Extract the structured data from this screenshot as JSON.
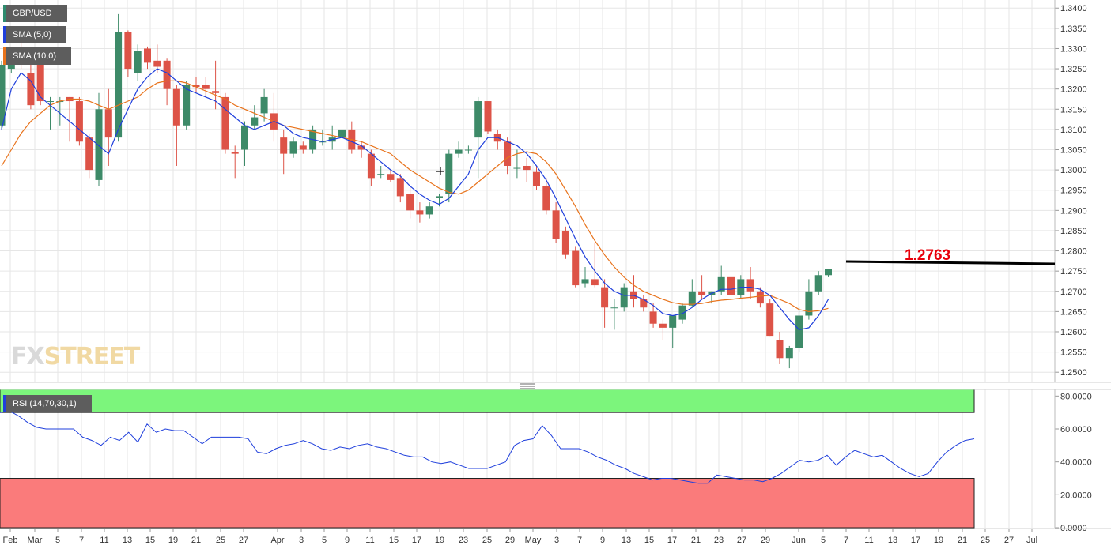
{
  "chart_data": [
    {
      "type": "candlestick",
      "title": "GBP/USD",
      "ylim": [
        1.2475,
        1.342
      ],
      "y_ticks": [
        "1.3400",
        "1.3350",
        "1.3300",
        "1.3250",
        "1.3200",
        "1.3150",
        "1.3100",
        "1.3050",
        "1.3000",
        "1.2950",
        "1.2900",
        "1.2850",
        "1.2800",
        "1.2750",
        "1.2700",
        "1.2650",
        "1.2600",
        "1.2550",
        "1.2500"
      ],
      "x_ticks": [
        "Feb",
        "Mar",
        "5",
        "7",
        "11",
        "13",
        "15",
        "19",
        "21",
        "25",
        "27",
        "Apr",
        "3",
        "5",
        "9",
        "11",
        "15",
        "17",
        "19",
        "23",
        "25",
        "29",
        "May",
        "3",
        "7",
        "9",
        "13",
        "15",
        "17",
        "21",
        "23",
        "27",
        "29",
        "Jun",
        "5",
        "7",
        "11",
        "13",
        "17",
        "19",
        "21",
        "25",
        "27",
        "Jul"
      ],
      "series": [
        {
          "name": "GBP/USD",
          "ohlc": [
            [
              1.311,
              1.327,
              1.31,
              1.326
            ],
            [
              1.325,
              1.33,
              1.324,
              1.3295
            ],
            [
              1.33,
              1.332,
              1.325,
              1.327
            ],
            [
              1.324,
              1.328,
              1.315,
              1.316
            ],
            [
              1.3265,
              1.328,
              1.316,
              1.317
            ],
            [
              1.317,
              1.318,
              1.31,
              1.317
            ],
            [
              1.317,
              1.318,
              1.311,
              1.317
            ],
            [
              1.318,
              1.318,
              1.307,
              1.317
            ],
            [
              1.317,
              1.318,
              1.306,
              1.307
            ],
            [
              1.308,
              1.309,
              1.298,
              1.3
            ],
            [
              1.2975,
              1.319,
              1.296,
              1.315
            ],
            [
              1.315,
              1.32,
              1.301,
              1.308
            ],
            [
              1.308,
              1.3385,
              1.307,
              1.334
            ],
            [
              1.334,
              1.3345,
              1.323,
              1.325
            ],
            [
              1.324,
              1.331,
              1.322,
              1.3295
            ],
            [
              1.33,
              1.3305,
              1.325,
              1.3265
            ],
            [
              1.327,
              1.331,
              1.324,
              1.3255
            ],
            [
              1.327,
              1.3275,
              1.316,
              1.32
            ],
            [
              1.32,
              1.321,
              1.301,
              1.311
            ],
            [
              1.311,
              1.322,
              1.31,
              1.321
            ],
            [
              1.321,
              1.323,
              1.319,
              1.3205
            ],
            [
              1.321,
              1.323,
              1.318,
              1.32
            ],
            [
              1.3195,
              1.327,
              1.315,
              1.319
            ],
            [
              1.318,
              1.319,
              1.304,
              1.305
            ],
            [
              1.3045,
              1.306,
              1.298,
              1.304
            ],
            [
              1.305,
              1.312,
              1.301,
              1.311
            ],
            [
              1.311,
              1.316,
              1.31,
              1.313
            ],
            [
              1.314,
              1.32,
              1.312,
              1.318
            ],
            [
              1.314,
              1.319,
              1.307,
              1.31
            ],
            [
              1.308,
              1.31,
              1.299,
              1.304
            ],
            [
              1.304,
              1.308,
              1.303,
              1.307
            ],
            [
              1.306,
              1.307,
              1.304,
              1.305
            ],
            [
              1.305,
              1.311,
              1.304,
              1.31
            ],
            [
              1.307,
              1.31,
              1.306,
              1.307
            ],
            [
              1.307,
              1.311,
              1.305,
              1.308
            ],
            [
              1.308,
              1.312,
              1.306,
              1.31
            ],
            [
              1.31,
              1.312,
              1.304,
              1.305
            ],
            [
              1.306,
              1.307,
              1.303,
              1.305
            ],
            [
              1.304,
              1.305,
              1.296,
              1.298
            ],
            [
              1.299,
              1.301,
              1.298,
              1.299
            ],
            [
              1.299,
              1.3,
              1.297,
              1.2975
            ],
            [
              1.298,
              1.299,
              1.292,
              1.2935
            ],
            [
              1.294,
              1.296,
              1.288,
              1.29
            ],
            [
              1.29,
              1.292,
              1.287,
              1.289
            ],
            [
              1.289,
              1.292,
              1.288,
              1.291
            ],
            [
              1.293,
              1.294,
              1.291,
              1.2935
            ],
            [
              1.294,
              1.305,
              1.292,
              1.304
            ],
            [
              1.304,
              1.307,
              1.303,
              1.305
            ],
            [
              1.305,
              1.306,
              1.304,
              1.305
            ],
            [
              1.308,
              1.318,
              1.298,
              1.317
            ],
            [
              1.317,
              1.317,
              1.309,
              1.3095
            ],
            [
              1.309,
              1.31,
              1.305,
              1.307
            ],
            [
              1.307,
              1.308,
              1.299,
              1.301
            ],
            [
              1.3005,
              1.305,
              1.298,
              1.3005
            ],
            [
              1.301,
              1.303,
              1.297,
              1.3
            ],
            [
              1.2995,
              1.301,
              1.295,
              1.296
            ],
            [
              1.296,
              1.298,
              1.289,
              1.29
            ],
            [
              1.29,
              1.292,
              1.282,
              1.283
            ],
            [
              1.285,
              1.286,
              1.278,
              1.279
            ],
            [
              1.28,
              1.281,
              1.271,
              1.2715
            ],
            [
              1.272,
              1.276,
              1.271,
              1.273
            ],
            [
              1.273,
              1.282,
              1.271,
              1.2715
            ],
            [
              1.271,
              1.273,
              1.261,
              1.266
            ],
            [
              1.266,
              1.268,
              1.2605,
              1.266
            ],
            [
              1.266,
              1.272,
              1.265,
              1.271
            ],
            [
              1.27,
              1.274,
              1.266,
              1.268
            ],
            [
              1.268,
              1.269,
              1.265,
              1.266
            ],
            [
              1.265,
              1.267,
              1.261,
              1.262
            ],
            [
              1.262,
              1.263,
              1.258,
              1.261
            ],
            [
              1.261,
              1.264,
              1.256,
              1.264
            ],
            [
              1.263,
              1.267,
              1.262,
              1.2665
            ],
            [
              1.2665,
              1.273,
              1.266,
              1.27
            ],
            [
              1.27,
              1.274,
              1.268,
              1.269
            ],
            [
              1.269,
              1.27,
              1.267,
              1.27
            ],
            [
              1.27,
              1.2763,
              1.269,
              1.2735
            ],
            [
              1.2735,
              1.274,
              1.268,
              1.269
            ],
            [
              1.269,
              1.274,
              1.268,
              1.273
            ],
            [
              1.273,
              1.276,
              1.268,
              1.27
            ],
            [
              1.27,
              1.271,
              1.266,
              1.267
            ],
            [
              1.267,
              1.268,
              1.259,
              1.259
            ],
            [
              1.258,
              1.26,
              1.252,
              1.2535
            ],
            [
              1.2535,
              1.2565,
              1.251,
              1.256
            ],
            [
              1.256,
              1.266,
              1.255,
              1.264
            ],
            [
              1.264,
              1.273,
              1.263,
              1.27
            ],
            [
              1.27,
              1.275,
              1.269,
              1.274
            ],
            [
              1.274,
              1.2755,
              1.2735,
              1.2755
            ]
          ]
        },
        {
          "name": "SMA (5,0)",
          "color": "#1f3fdc",
          "values": [
            1.31,
            1.32,
            1.324,
            1.322,
            1.318,
            1.316,
            1.314,
            1.312,
            1.31,
            1.308,
            1.306,
            1.304,
            1.31,
            1.315,
            1.32,
            1.323,
            1.325,
            1.324,
            1.322,
            1.32,
            1.319,
            1.318,
            1.317,
            1.315,
            1.313,
            1.311,
            1.31,
            1.311,
            1.312,
            1.311,
            1.309,
            1.308,
            1.3075,
            1.307,
            1.3075,
            1.308,
            1.307,
            1.306,
            1.304,
            1.302,
            1.3,
            1.2985,
            1.296,
            1.294,
            1.2925,
            1.2915,
            1.293,
            1.296,
            1.299,
            1.305,
            1.308,
            1.308,
            1.307,
            1.306,
            1.304,
            1.301,
            1.2975,
            1.293,
            1.288,
            1.283,
            1.2785,
            1.275,
            1.272,
            1.27,
            1.269,
            1.269,
            1.268,
            1.2665,
            1.2645,
            1.264,
            1.2645,
            1.266,
            1.268,
            1.2695,
            1.2705,
            1.2705,
            1.271,
            1.271,
            1.2705,
            1.269,
            1.266,
            1.263,
            1.2605,
            1.261,
            1.264,
            1.268
          ]
        },
        {
          "name": "SMA (10,0)",
          "color": "#e8731c",
          "values": [
            1.301,
            1.305,
            1.309,
            1.312,
            1.314,
            1.316,
            1.317,
            1.3175,
            1.3175,
            1.317,
            1.316,
            1.315,
            1.316,
            1.317,
            1.318,
            1.32,
            1.3215,
            1.322,
            1.322,
            1.3215,
            1.3205,
            1.3195,
            1.3185,
            1.3175,
            1.316,
            1.315,
            1.314,
            1.313,
            1.312,
            1.311,
            1.3105,
            1.31,
            1.3095,
            1.309,
            1.3085,
            1.308,
            1.3075,
            1.307,
            1.306,
            1.305,
            1.304,
            1.302,
            1.3,
            1.2985,
            1.297,
            1.2955,
            1.2945,
            1.294,
            1.295,
            1.297,
            1.299,
            1.301,
            1.303,
            1.304,
            1.3045,
            1.304,
            1.302,
            1.299,
            1.295,
            1.291,
            1.2865,
            1.2825,
            1.279,
            1.276,
            1.2735,
            1.2715,
            1.27,
            1.269,
            1.268,
            1.2672,
            1.2668,
            1.2668,
            1.267,
            1.2675,
            1.2678,
            1.268,
            1.2683,
            1.2685,
            1.2688,
            1.269,
            1.268,
            1.267,
            1.2655,
            1.265,
            1.2652,
            1.2658
          ]
        }
      ],
      "annotation": {
        "label": "1.2763",
        "level": 1.2763,
        "color": "#e8000b"
      }
    },
    {
      "type": "line",
      "title": "RSI (14,70,30,1)",
      "ylim": [
        0,
        84
      ],
      "y_ticks": [
        "80.0000",
        "60.0000",
        "40.0000",
        "20.0000",
        "0.0000"
      ],
      "overbought": 70,
      "oversold": 30,
      "series": [
        {
          "name": "RSI (14,70,30,1)",
          "color": "#1f3fdc",
          "values": [
            70,
            71,
            68,
            64,
            61,
            60,
            60,
            60,
            60,
            55,
            53,
            50,
            55,
            53,
            58,
            52,
            63,
            58,
            60,
            59,
            59,
            55,
            51,
            55,
            55,
            55,
            55,
            54,
            46,
            45,
            48,
            50,
            51,
            53,
            51,
            48,
            47,
            49,
            48,
            50,
            51,
            49,
            48,
            46,
            44,
            43,
            43,
            40,
            39,
            40,
            38,
            36,
            36,
            36,
            38,
            40,
            50,
            53,
            54,
            62,
            56,
            48,
            48,
            48,
            46,
            43,
            41,
            38,
            36,
            33,
            31,
            29,
            30,
            30,
            29,
            28,
            27,
            27,
            32,
            31,
            30,
            29,
            29,
            28,
            30,
            33,
            37,
            41,
            40,
            41,
            44,
            38,
            43,
            47,
            45,
            43,
            44,
            40,
            36,
            33,
            31,
            33,
            40,
            46,
            50,
            53,
            54
          ]
        }
      ]
    }
  ]
}
